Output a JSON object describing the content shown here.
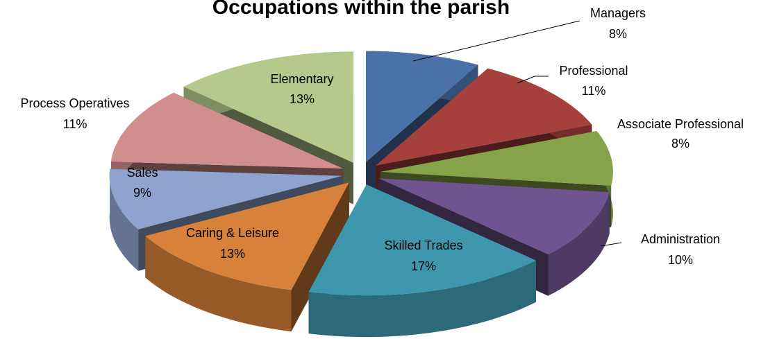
{
  "chart_data": {
    "type": "pie3d",
    "title": "Occupations within the parish",
    "categories": [
      "Managers",
      "Professional",
      "Associate Professional",
      "Administration",
      "Skilled Trades",
      "Caring & Leisure",
      "Sales",
      "Process Operatives",
      "Elementary"
    ],
    "values": [
      8,
      11,
      8,
      10,
      17,
      13,
      9,
      11,
      13
    ],
    "value_labels": [
      "8%",
      "11%",
      "8%",
      "10%",
      "17%",
      "13%",
      "9%",
      "11%",
      "13%"
    ],
    "colors": [
      "#4a72a8",
      "#a5403d",
      "#86a34a",
      "#6e558f",
      "#3f97ae",
      "#d8813a",
      "#8ea4cf",
      "#d08f8d",
      "#b5c98c"
    ]
  }
}
